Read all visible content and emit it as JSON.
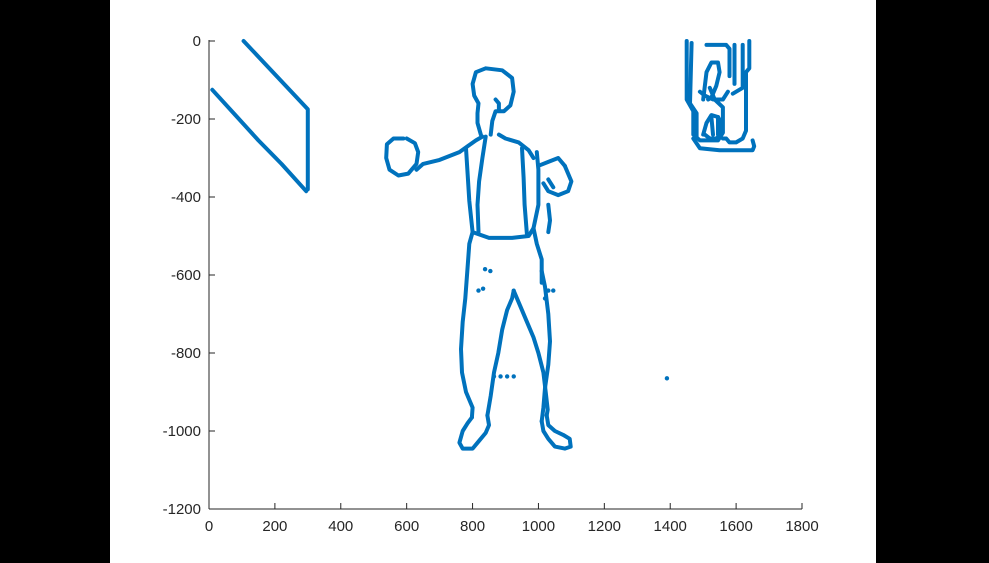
{
  "chart_data": {
    "type": "scatter",
    "title": "",
    "xlabel": "",
    "ylabel": "",
    "xlim": [
      0,
      1800
    ],
    "ylim": [
      -1200,
      0
    ],
    "xticks": [
      0,
      200,
      400,
      600,
      800,
      1000,
      1200,
      1400,
      1600,
      1800
    ],
    "yticks": [
      0,
      -200,
      -400,
      -600,
      -800,
      -1000,
      -1200
    ],
    "grid": false,
    "legend": "none",
    "color": "#0072BD",
    "series": [
      {
        "segments": [
          [
            [
              105,
              0
            ],
            [
              300,
              -175
            ],
            [
              300,
              -380
            ]
          ],
          [
            [
              10,
              -125
            ],
            [
              80,
              -190
            ],
            [
              150,
              -255
            ],
            [
              220,
              -315
            ],
            [
              295,
              -385
            ]
          ],
          [
            [
              590,
              -250
            ],
            [
              560,
              -250
            ],
            [
              540,
              -265
            ],
            [
              538,
              -300
            ],
            [
              548,
              -330
            ],
            [
              575,
              -345
            ],
            [
              605,
              -340
            ],
            [
              630,
              -315
            ],
            [
              635,
              -285
            ],
            [
              625,
              -262
            ],
            [
              600,
              -250
            ]
          ],
          [
            [
              825,
              -240
            ],
            [
              815,
              -210
            ],
            [
              815,
              -185
            ],
            [
              818,
              -160
            ],
            [
              805,
              -140
            ],
            [
              800,
              -110
            ],
            [
              810,
              -80
            ],
            [
              840,
              -70
            ],
            [
              890,
              -75
            ],
            [
              920,
              -95
            ],
            [
              925,
              -130
            ],
            [
              915,
              -165
            ],
            [
              895,
              -180
            ],
            [
              870,
              -180
            ],
            [
              860,
              -205
            ],
            [
              855,
              -240
            ]
          ],
          [
            [
              870,
              -150
            ],
            [
              880,
              -160
            ],
            [
              880,
              -175
            ]
          ],
          [
            [
              630,
              -330
            ],
            [
              650,
              -315
            ],
            [
              700,
              -305
            ],
            [
              760,
              -285
            ],
            [
              785,
              -270
            ],
            [
              810,
              -255
            ],
            [
              830,
              -245
            ]
          ],
          [
            [
              780,
              -275
            ],
            [
              785,
              -340
            ],
            [
              790,
              -410
            ],
            [
              800,
              -490
            ]
          ],
          [
            [
              800,
              -490
            ],
            [
              850,
              -505
            ],
            [
              920,
              -505
            ],
            [
              970,
              -500
            ],
            [
              985,
              -480
            ]
          ],
          [
            [
              985,
              -480
            ],
            [
              1000,
              -420
            ],
            [
              1000,
              -330
            ],
            [
              995,
              -285
            ]
          ],
          [
            [
              1000,
              -320
            ],
            [
              1030,
              -310
            ],
            [
              1060,
              -300
            ],
            [
              1080,
              -320
            ]
          ],
          [
            [
              1080,
              -320
            ],
            [
              1100,
              -360
            ],
            [
              1090,
              -385
            ],
            [
              1060,
              -395
            ],
            [
              1030,
              -385
            ],
            [
              1015,
              -365
            ]
          ],
          [
            [
              1030,
              -355
            ],
            [
              1045,
              -375
            ]
          ],
          [
            [
              840,
              -245
            ],
            [
              830,
              -300
            ],
            [
              820,
              -360
            ],
            [
              815,
              -420
            ],
            [
              818,
              -490
            ]
          ],
          [
            [
              880,
              -240
            ],
            [
              900,
              -250
            ],
            [
              940,
              -260
            ],
            [
              970,
              -280
            ],
            [
              985,
              -300
            ]
          ],
          [
            [
              950,
              -275
            ],
            [
              955,
              -350
            ],
            [
              958,
              -420
            ],
            [
              965,
              -495
            ]
          ],
          [
            [
              985,
              -480
            ],
            [
              995,
              -520
            ],
            [
              1010,
              -560
            ],
            [
              1010,
              -620
            ]
          ],
          [
            [
              800,
              -490
            ],
            [
              790,
              -520
            ],
            [
              785,
              -580
            ],
            [
              778,
              -660
            ],
            [
              770,
              -720
            ],
            [
              765,
              -790
            ],
            [
              768,
              -850
            ],
            [
              780,
              -900
            ],
            [
              800,
              -940
            ],
            [
              798,
              -965
            ]
          ],
          [
            [
              798,
              -965
            ],
            [
              785,
              -980
            ],
            [
              770,
              -1000
            ],
            [
              760,
              -1030
            ],
            [
              770,
              -1045
            ],
            [
              800,
              -1045
            ],
            [
              820,
              -1025
            ],
            [
              840,
              -1005
            ],
            [
              850,
              -985
            ],
            [
              845,
              -960
            ]
          ],
          [
            [
              845,
              -960
            ],
            [
              855,
              -910
            ],
            [
              865,
              -850
            ],
            [
              878,
              -800
            ],
            [
              890,
              -740
            ],
            [
              905,
              -690
            ],
            [
              920,
              -660
            ],
            [
              925,
              -640
            ]
          ],
          [
            [
              925,
              -640
            ],
            [
              945,
              -680
            ],
            [
              965,
              -720
            ],
            [
              985,
              -760
            ],
            [
              1000,
              -800
            ],
            [
              1015,
              -850
            ],
            [
              1022,
              -900
            ],
            [
              1028,
              -945
            ],
            [
              1025,
              -960
            ]
          ],
          [
            [
              1025,
              -960
            ],
            [
              1030,
              -985
            ],
            [
              1050,
              -1000
            ],
            [
              1075,
              -1010
            ],
            [
              1095,
              -1020
            ],
            [
              1098,
              -1040
            ],
            [
              1080,
              -1045
            ],
            [
              1050,
              -1040
            ],
            [
              1030,
              -1020
            ],
            [
              1015,
              -1000
            ],
            [
              1010,
              -975
            ]
          ],
          [
            [
              1010,
              -975
            ],
            [
              1015,
              -940
            ],
            [
              1020,
              -890
            ],
            [
              1030,
              -830
            ],
            [
              1035,
              -770
            ],
            [
              1030,
              -700
            ],
            [
              1020,
              -630
            ],
            [
              1010,
              -590
            ]
          ],
          [
            [
              1030,
              -420
            ],
            [
              1035,
              -460
            ],
            [
              1030,
              -490
            ]
          ],
          [
            [
              1450,
              0
            ],
            [
              1450,
              -150
            ],
            [
              1470,
              -180
            ],
            [
              1470,
              -240
            ],
            [
              1490,
              -255
            ],
            [
              1545,
              -255
            ],
            [
              1560,
              -235
            ],
            [
              1560,
              -170
            ],
            [
              1535,
              -150
            ],
            [
              1520,
              -120
            ]
          ],
          [
            [
              1465,
              -5
            ],
            [
              1460,
              -160
            ],
            [
              1480,
              -185
            ],
            [
              1480,
              -245
            ]
          ],
          [
            [
              1640,
              0
            ],
            [
              1640,
              -70
            ],
            [
              1630,
              -80
            ],
            [
              1630,
              -230
            ],
            [
              1620,
              -250
            ],
            [
              1600,
              -260
            ],
            [
              1580,
              -260
            ],
            [
              1570,
              -250
            ],
            [
              1560,
              -250
            ]
          ],
          [
            [
              1620,
              -10
            ],
            [
              1620,
              -120
            ],
            [
              1590,
              -135
            ]
          ],
          [
            [
              1595,
              -10
            ],
            [
              1595,
              -110
            ]
          ],
          [
            [
              1510,
              -10
            ],
            [
              1570,
              -10
            ],
            [
              1580,
              -20
            ],
            [
              1580,
              -90
            ]
          ],
          [
            [
              1500,
              -150
            ],
            [
              1510,
              -80
            ],
            [
              1525,
              -55
            ],
            [
              1545,
              -55
            ],
            [
              1550,
              -80
            ],
            [
              1540,
              -115
            ],
            [
              1525,
              -145
            ],
            [
              1515,
              -150
            ]
          ],
          [
            [
              1490,
              -130
            ],
            [
              1505,
              -140
            ],
            [
              1530,
              -150
            ],
            [
              1560,
              -150
            ],
            [
              1575,
              -130
            ]
          ],
          [
            [
              1470,
              -250
            ],
            [
              1490,
              -275
            ],
            [
              1550,
              -280
            ],
            [
              1650,
              -280
            ],
            [
              1655,
              -270
            ],
            [
              1650,
              -255
            ]
          ],
          [
            [
              1500,
              -240
            ],
            [
              1510,
              -210
            ],
            [
              1525,
              -190
            ],
            [
              1545,
              -195
            ],
            [
              1555,
              -210
            ],
            [
              1555,
              -240
            ],
            [
              1540,
              -250
            ],
            [
              1520,
              -250
            ],
            [
              1505,
              -240
            ]
          ],
          [
            [
              1525,
              -195
            ],
            [
              1530,
              -240
            ]
          ],
          [
            [
              1545,
              -195
            ],
            [
              1545,
              -240
            ]
          ]
        ],
        "points": [
          [
            838,
            -585
          ],
          [
            854,
            -590
          ],
          [
            818,
            -640
          ],
          [
            832,
            -635
          ],
          [
            1030,
            -640
          ],
          [
            1045,
            -640
          ],
          [
            1020,
            -660
          ],
          [
            865,
            -860
          ],
          [
            885,
            -860
          ],
          [
            905,
            -860
          ],
          [
            925,
            -860
          ],
          [
            1390,
            -865
          ]
        ]
      }
    ]
  }
}
